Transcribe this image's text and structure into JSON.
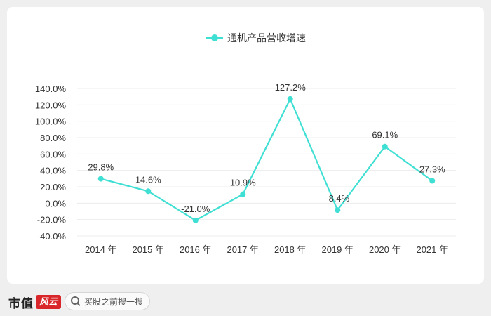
{
  "chart_data": {
    "type": "line",
    "categories": [
      "2014 年",
      "2015 年",
      "2016 年",
      "2017 年",
      "2018 年",
      "2019 年",
      "2020 年",
      "2021 年"
    ],
    "series": [
      {
        "name": "通机产品营收增速",
        "values": [
          29.8,
          14.6,
          -21.0,
          10.9,
          127.2,
          -8.4,
          69.1,
          27.3
        ],
        "value_labels": [
          "29.8%",
          "14.6%",
          "-21.0%",
          "10.9%",
          "127.2%",
          "-8.4%",
          "69.1%",
          "27.3%"
        ],
        "color": "#40dfd4"
      }
    ],
    "ylim": [
      -40,
      140
    ],
    "yticks": [
      -40,
      -20,
      0,
      20,
      40,
      60,
      80,
      100,
      120,
      140
    ],
    "ytick_labels": [
      "-40.0%",
      "-20.0%",
      "0.0%",
      "20.0%",
      "40.0%",
      "60.0%",
      "80.0%",
      "100.0%",
      "120.0%",
      "140.0%"
    ],
    "grid": true,
    "legend_position": "top-center",
    "title": "",
    "xlabel": "",
    "ylabel": ""
  },
  "footer": {
    "brand_name": "市值",
    "brand_seal": "风云",
    "search_placeholder": "买股之前搜一搜"
  },
  "colors": {
    "line": "#40dfd4",
    "grid": "#ececec",
    "axis_text": "#333333"
  }
}
